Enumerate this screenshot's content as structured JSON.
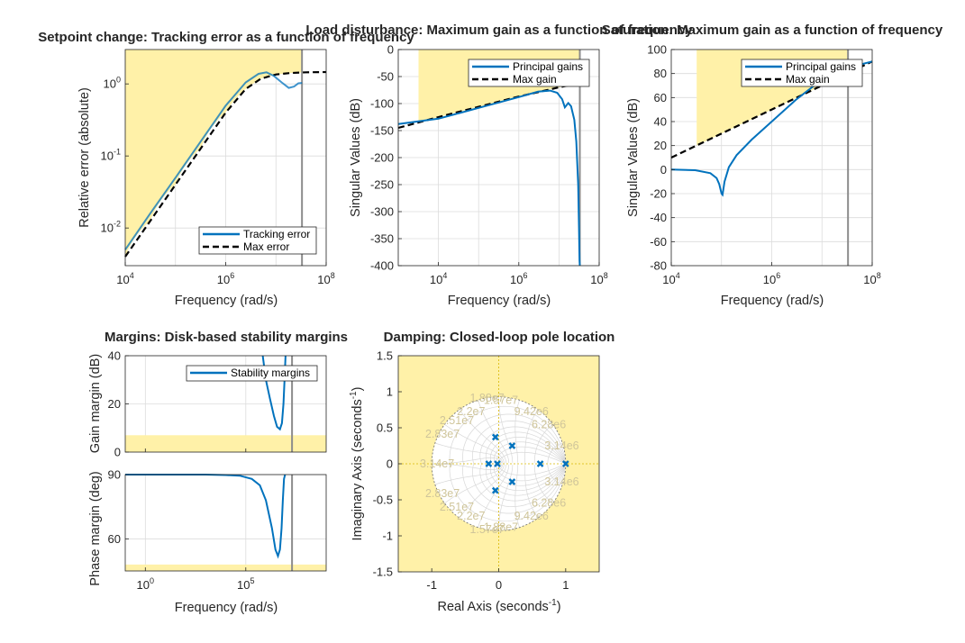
{
  "chart_data": [
    {
      "id": "tracking",
      "type": "line",
      "title": "Setpoint change: Tracking error as a function of frequency",
      "xlabel": "Frequency (rad/s)",
      "ylabel": "Relative error (absolute)",
      "xscale": "log",
      "yscale": "log",
      "xlim": [
        10000,
        100000000
      ],
      "ylim": [
        0.003,
        3
      ],
      "xticks": [
        {
          "v": 10000,
          "b": "10",
          "e": "4"
        },
        {
          "v": 1000000,
          "b": "10",
          "e": "6"
        },
        {
          "v": 100000000,
          "b": "10",
          "e": "8"
        }
      ],
      "yticks": [
        {
          "v": 0.01,
          "b": "10",
          "e": "-2"
        },
        {
          "v": 0.1,
          "b": "10",
          "e": "-1"
        },
        {
          "v": 1,
          "b": "10",
          "e": "0"
        }
      ],
      "grid": true,
      "legend_position": "bottom-right",
      "shaded_region": {
        "kind": "above-max-error",
        "x_end": 33000000
      },
      "vline_x": 33000000,
      "series": [
        {
          "name": "Tracking error",
          "style": "solid",
          "color": "#0072bd",
          "x": [
            10000,
            31600,
            100000,
            316000,
            1000000,
            2500000,
            4500000,
            6500000,
            9000000,
            13000000,
            18000000,
            23000000,
            28000000,
            33000000
          ],
          "y": [
            0.005,
            0.016,
            0.05,
            0.158,
            0.5,
            1.05,
            1.38,
            1.45,
            1.3,
            1.05,
            0.88,
            0.92,
            1.02,
            1.03
          ]
        },
        {
          "name": "Max error",
          "style": "dashed",
          "color": "#000000",
          "x": [
            10000,
            31600,
            100000,
            316000,
            1000000,
            2500000,
            5000000,
            10000000,
            20000000,
            40000000,
            100000000
          ],
          "y": [
            0.004,
            0.0126,
            0.04,
            0.126,
            0.4,
            0.85,
            1.18,
            1.35,
            1.42,
            1.45,
            1.46
          ]
        }
      ]
    },
    {
      "id": "loaddist",
      "type": "line",
      "title": "Load disturbance: Maximum gain as a function of frequency",
      "xlabel": "Frequency (rad/s)",
      "ylabel": "Singular Values (dB)",
      "xscale": "log",
      "yscale": "linear",
      "xlim": [
        1000,
        100000000
      ],
      "ylim": [
        -400,
        0
      ],
      "xticks": [
        {
          "v": 10000,
          "b": "10",
          "e": "4"
        },
        {
          "v": 1000000,
          "b": "10",
          "e": "6"
        },
        {
          "v": 100000000,
          "b": "10",
          "e": "8"
        }
      ],
      "yticks": [
        {
          "v": 0,
          "t": "0"
        },
        {
          "v": -50,
          "t": "-50"
        },
        {
          "v": -100,
          "t": "-100"
        },
        {
          "v": -150,
          "t": "-150"
        },
        {
          "v": -200,
          "t": "-200"
        },
        {
          "v": -250,
          "t": "-250"
        },
        {
          "v": -300,
          "t": "-300"
        },
        {
          "v": -350,
          "t": "-350"
        },
        {
          "v": -400,
          "t": "-400"
        }
      ],
      "grid": true,
      "legend_position": "top-right",
      "shaded_region": {
        "kind": "above-max-gain",
        "x_start": 3200,
        "x_end": 33000000
      },
      "vline_x": 33000000,
      "series": [
        {
          "name": "Principal gains",
          "style": "solid",
          "color": "#0072bd",
          "x": [
            1000,
            10000,
            100000,
            1000000,
            3000000,
            6000000,
            9000000,
            12000000,
            14000000,
            17000000,
            20000000,
            24000000,
            27000000,
            30000000,
            31500000,
            32500000,
            33000000
          ],
          "y": [
            -138,
            -128,
            -108,
            -88,
            -78,
            -76,
            -80,
            -92,
            -107,
            -99,
            -105,
            -130,
            -170,
            -250,
            -330,
            -390,
            -400
          ]
        },
        {
          "name": "Max gain",
          "style": "dashed",
          "color": "#000000",
          "x": [
            1000,
            10000,
            100000,
            1000000,
            10000000,
            33000000
          ],
          "y": [
            -145,
            -125,
            -106,
            -87,
            -70,
            -62
          ]
        }
      ]
    },
    {
      "id": "saturation",
      "type": "line",
      "title": "Saturation: Maximum gain as a function of frequency",
      "xlabel": "Frequency (rad/s)",
      "ylabel": "Singular Values (dB)",
      "xscale": "log",
      "yscale": "linear",
      "xlim": [
        10000,
        100000000
      ],
      "ylim": [
        -80,
        100
      ],
      "xticks": [
        {
          "v": 10000,
          "b": "10",
          "e": "4"
        },
        {
          "v": 1000000,
          "b": "10",
          "e": "6"
        },
        {
          "v": 100000000,
          "b": "10",
          "e": "8"
        }
      ],
      "yticks": [
        {
          "v": 100,
          "t": "100"
        },
        {
          "v": 80,
          "t": "80"
        },
        {
          "v": 60,
          "t": "60"
        },
        {
          "v": 40,
          "t": "40"
        },
        {
          "v": 20,
          "t": "20"
        },
        {
          "v": 0,
          "t": "0"
        },
        {
          "v": -20,
          "t": "-20"
        },
        {
          "v": -40,
          "t": "-40"
        },
        {
          "v": -60,
          "t": "-60"
        },
        {
          "v": -80,
          "t": "-80"
        }
      ],
      "grid": true,
      "legend_position": "top-right",
      "shaded_region": {
        "kind": "above-max-gain",
        "x_start": 32000,
        "x_end": 33000000
      },
      "vline_x": 33000000,
      "series": [
        {
          "name": "Principal gains",
          "style": "solid",
          "color": "#0072bd",
          "x": [
            10000,
            30000,
            60000,
            80000,
            90000,
            100000,
            105000,
            115000,
            140000,
            200000,
            400000,
            1000000,
            3000000,
            10000000,
            33000000,
            100000000
          ],
          "y": [
            0,
            -0.5,
            -3,
            -7,
            -12,
            -20,
            -21,
            -10,
            2,
            12,
            25,
            40,
            58,
            75,
            85,
            90
          ]
        },
        {
          "name": "Max gain",
          "style": "dashed",
          "color": "#000000",
          "x": [
            10000,
            100000000
          ],
          "y": [
            10,
            90
          ]
        }
      ]
    },
    {
      "id": "margins",
      "type": "line",
      "title": "Margins: Disk-based stability margins",
      "xlabel": "Frequency (rad/s)",
      "xscale": "log",
      "xlim": [
        0.1,
        1000000000
      ],
      "xticks": [
        {
          "v": 1,
          "b": "10",
          "e": "0"
        },
        {
          "v": 100000,
          "b": "10",
          "e": "5"
        }
      ],
      "grid": true,
      "legend_position": "top-right",
      "vline_x": 20000000,
      "panels": [
        {
          "ylabel": "Gain margin (dB)",
          "ylim": [
            0,
            40
          ],
          "yticks": [
            {
              "v": 0,
              "t": "0"
            },
            {
              "v": 20,
              "t": "20"
            },
            {
              "v": 40,
              "t": "40"
            }
          ],
          "shaded_below": 7,
          "series": [
            {
              "name": "Stability margins",
              "color": "#0072bd",
              "x": [
                700000,
                1000000,
                1600000,
                2500000,
                3600000,
                5000000,
                6300000,
                7500000,
                8500000,
                9500000
              ],
              "y": [
                40,
                30,
                22,
                15,
                10.5,
                9.5,
                12,
                20,
                30,
                40
              ]
            }
          ]
        },
        {
          "ylabel": "Phase margin (deg)",
          "ylim": [
            45,
            90
          ],
          "yticks": [
            {
              "v": 90,
              "t": "90"
            },
            {
              "v": 60,
              "t": "60"
            }
          ],
          "shaded_below": 48,
          "series": [
            {
              "name": "Stability margins",
              "color": "#0072bd",
              "x": [
                0.1,
                1,
                10,
                100,
                1000,
                10000,
                50000,
                200000,
                500000,
                1000000,
                2000000,
                3000000,
                4000000,
                5000000,
                6000000,
                7000000,
                8000000,
                9000000
              ],
              "y": [
                90,
                90,
                90,
                90,
                90,
                89.8,
                89.5,
                88,
                85,
                78,
                65,
                55,
                52,
                55,
                65,
                78,
                88,
                90
              ]
            }
          ]
        }
      ]
    },
    {
      "id": "damping",
      "type": "scatter",
      "title": "Damping: Closed-loop pole location",
      "xlabel": "Real  Axis  (seconds",
      "xlabel_sup": "-1",
      "xlabel_close": ")",
      "ylabel": "Imaginary  Axis  (seconds",
      "ylabel_sup": "-1",
      "ylabel_close": ")",
      "xlim": [
        -1.5,
        1.5
      ],
      "ylim": [
        -1.5,
        1.5
      ],
      "xticks": [
        {
          "v": -1,
          "t": "-1"
        },
        {
          "v": 0,
          "t": "0"
        },
        {
          "v": 1,
          "t": "1"
        }
      ],
      "yticks": [
        {
          "v": 1.5,
          "t": "1.5"
        },
        {
          "v": 1,
          "t": "1"
        },
        {
          "v": 0.5,
          "t": "0.5"
        },
        {
          "v": 0,
          "t": "0"
        },
        {
          "v": -0.5,
          "t": "-0.5"
        },
        {
          "v": -1,
          "t": "-1"
        },
        {
          "v": -1.5,
          "t": "-1.5"
        }
      ],
      "grid": true,
      "shaded_region": {
        "kind": "outside-unit-circle"
      },
      "grid_annotations": [
        "1.88e7",
        "1.57e7",
        "2.2e7",
        "9.42e6",
        "2.51e7",
        "6.28e6",
        "2.83e7",
        "3.14e6",
        "3.14e7",
        "3.14e6",
        "2.83e7",
        "6.28e6",
        "2.51e7",
        "9.42e6",
        "2.2e7",
        "1.88e7",
        "1.57e7"
      ],
      "poles": [
        {
          "x": -0.05,
          "y": 0.37
        },
        {
          "x": -0.05,
          "y": -0.37
        },
        {
          "x": 0.2,
          "y": 0.25
        },
        {
          "x": 0.2,
          "y": -0.25
        },
        {
          "x": -0.15,
          "y": 0
        },
        {
          "x": -0.02,
          "y": 0
        },
        {
          "x": 0.62,
          "y": 0
        },
        {
          "x": 1.0,
          "y": 0
        }
      ]
    }
  ]
}
